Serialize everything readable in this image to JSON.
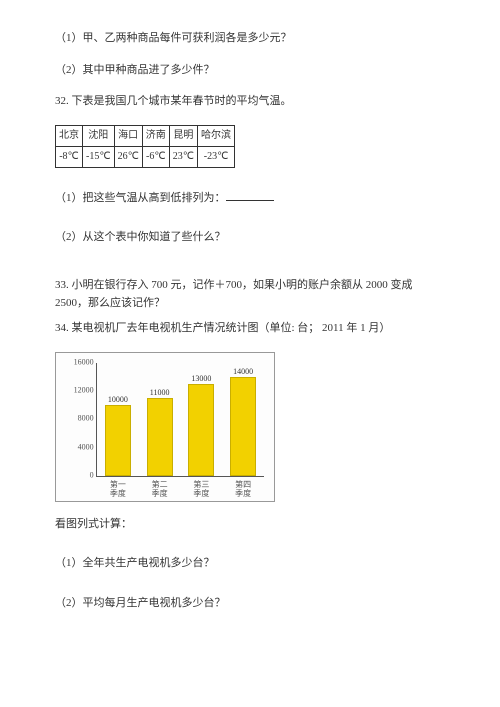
{
  "q31_1": "（1）甲、乙两种商品每件可获利润各是多少元？",
  "q31_2": "（2）其中甲种商品进了多少件？",
  "q32_title": "32. 下表是我国几个城市某年春节时的平均气温。",
  "temp_table": {
    "columns": [
      "北京",
      "沈阳",
      "海口",
      "济南",
      "昆明",
      "哈尔滨"
    ],
    "rows": [
      [
        "-8℃",
        "-15℃",
        "26℃",
        "-6℃",
        "23℃",
        "-23℃"
      ]
    ]
  },
  "q32_1_prefix": "（1）把这些气温从高到低排列为：",
  "q32_2": "（2）从这个表中你知道了些什么？",
  "q33": "33. 小明在银行存入 700 元，记作＋700，如果小明的账户余额从 2000 变成 2500，那么应该记作？",
  "q34_title": "34. 某电视机厂去年电视机生产情况统计图（单位: 台；  2011 年 1 月）",
  "chart": {
    "type": "bar",
    "categories_line1": [
      "第一",
      "第二",
      "第三",
      "第四"
    ],
    "categories_line2": [
      "季度",
      "季度",
      "季度",
      "季度"
    ],
    "values": [
      10000,
      11000,
      13000,
      14000
    ],
    "ylim": [
      0,
      16000
    ],
    "ytick_step": 4000,
    "yticks": [
      0,
      4000,
      8000,
      12000,
      16000
    ],
    "bar_color": "#f2d100",
    "bar_border": "#c9ae00",
    "grid_color": "#e0e0e0",
    "background_color": "#fdfdfd",
    "label_fontsize": 8
  },
  "q34_prompt": "看图列式计算：",
  "q34_1": "（1）全年共生产电视机多少台？",
  "q34_2": "（2）平均每月生产电视机多少台？"
}
